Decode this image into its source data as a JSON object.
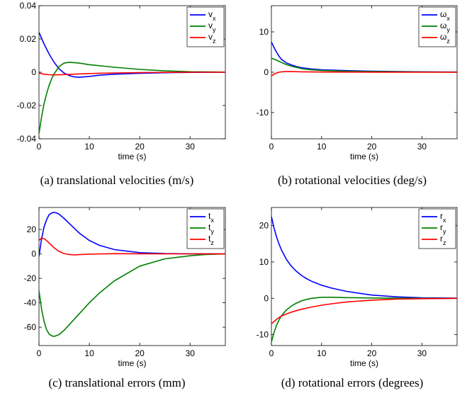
{
  "chart_data": [
    {
      "type": "line",
      "caption": "(a) translational velocities (m/s)",
      "xlabel": "time (s)",
      "xlim": [
        0,
        37
      ],
      "ylim": [
        -0.04,
        0.04
      ],
      "xticks": [
        "0",
        "10",
        "20",
        "30"
      ],
      "xtick_values": [
        0,
        10,
        20,
        30
      ],
      "yticks": [
        "-0.04",
        "-0.02",
        "0",
        "0.02",
        "0.04"
      ],
      "ytick_values": [
        -0.04,
        -0.02,
        0,
        0.02,
        0.04
      ],
      "legend": {
        "position": "top-right"
      },
      "series": [
        {
          "name": "v",
          "sub": "x",
          "color": "#0000ff",
          "x": [
            0,
            1,
            2,
            3,
            4,
            5,
            6,
            7,
            8,
            10,
            12,
            15,
            20,
            25,
            30,
            37
          ],
          "y": [
            0.024,
            0.017,
            0.011,
            0.006,
            0.002,
            -0.0005,
            -0.002,
            -0.0028,
            -0.003,
            -0.0025,
            -0.0018,
            -0.0012,
            -0.0006,
            -0.0003,
            -0.0001,
            0
          ]
        },
        {
          "name": "v",
          "sub": "y",
          "color": "#008000",
          "x": [
            0,
            0.5,
            1,
            1.5,
            2,
            2.5,
            3,
            4,
            5,
            6,
            8,
            10,
            15,
            20,
            25,
            30,
            37
          ],
          "y": [
            -0.037,
            -0.027,
            -0.019,
            -0.013,
            -0.008,
            -0.004,
            -0.001,
            0.0035,
            0.0055,
            0.006,
            0.0055,
            0.0045,
            0.003,
            0.0017,
            0.0008,
            0.0003,
            0.0001
          ]
        },
        {
          "name": "v",
          "sub": "z",
          "color": "#ff0000",
          "x": [
            0,
            1,
            2,
            3,
            5,
            8,
            12,
            20,
            30,
            37
          ],
          "y": [
            -0.0005,
            -0.0012,
            -0.0015,
            -0.0016,
            -0.0014,
            -0.001,
            -0.0006,
            -0.0002,
            0,
            0
          ]
        }
      ]
    },
    {
      "type": "line",
      "caption": "(b) rotational velocities (deg/s)",
      "xlabel": "time (s)",
      "xlim": [
        0,
        37
      ],
      "ylim": [
        -16.5,
        16.5
      ],
      "xticks": [
        "0",
        "10",
        "20",
        "30"
      ],
      "xtick_values": [
        0,
        10,
        20,
        30
      ],
      "yticks": [
        "-10",
        "0",
        "10"
      ],
      "ytick_values": [
        -10,
        0,
        10
      ],
      "legend": {
        "position": "top-right"
      },
      "series": [
        {
          "name": "ω",
          "sub": "x",
          "color": "#0000ff",
          "x": [
            0,
            0.5,
            1,
            1.5,
            2,
            3,
            4,
            5,
            6,
            8,
            10,
            15,
            20,
            30,
            37
          ],
          "y": [
            7.5,
            6.2,
            5.0,
            4.0,
            3.2,
            2.3,
            1.8,
            1.4,
            1.1,
            0.8,
            0.6,
            0.4,
            0.25,
            0.1,
            0.05
          ]
        },
        {
          "name": "ω",
          "sub": "y",
          "color": "#008000",
          "x": [
            0,
            1,
            2,
            3,
            4,
            5,
            6,
            8,
            10,
            15,
            20,
            30,
            37
          ],
          "y": [
            3.5,
            3.0,
            2.4,
            1.9,
            1.5,
            1.2,
            0.9,
            0.6,
            0.45,
            0.25,
            0.15,
            0.05,
            0.02
          ]
        },
        {
          "name": "ω",
          "sub": "z",
          "color": "#ff0000",
          "x": [
            0,
            0.5,
            1,
            1.5,
            2,
            3,
            4,
            6,
            10,
            20,
            37
          ],
          "y": [
            -0.9,
            -0.5,
            -0.2,
            0,
            0.1,
            0.15,
            0.15,
            0.1,
            0.05,
            0.02,
            0
          ]
        }
      ]
    },
    {
      "type": "line",
      "caption": "(c) translational errors (mm)",
      "xlabel": "time (s)",
      "xlim": [
        0,
        37
      ],
      "ylim": [
        -75,
        38
      ],
      "xticks": [
        "0",
        "10",
        "20",
        "30"
      ],
      "xtick_values": [
        0,
        10,
        20,
        30
      ],
      "yticks": [
        "-60",
        "-40",
        "-20",
        "0",
        "20"
      ],
      "ytick_values": [
        -60,
        -40,
        -20,
        0,
        20
      ],
      "legend": {
        "position": "top-right"
      },
      "series": [
        {
          "name": "t",
          "sub": "x",
          "color": "#0000ff",
          "x": [
            0,
            0.5,
            1,
            1.5,
            2,
            2.5,
            3,
            3.5,
            4,
            5,
            6,
            7,
            8,
            10,
            12,
            15,
            20,
            25,
            30,
            37
          ],
          "y": [
            -2,
            12,
            22,
            28,
            32,
            33.5,
            34,
            33.5,
            32.5,
            29,
            25,
            21,
            17,
            11,
            7,
            3.5,
            1,
            0.3,
            0.1,
            0
          ]
        },
        {
          "name": "t",
          "sub": "y",
          "color": "#008000",
          "x": [
            0,
            0.5,
            1,
            1.5,
            2,
            2.5,
            3,
            4,
            5,
            6,
            8,
            10,
            12,
            15,
            20,
            25,
            30,
            33,
            37
          ],
          "y": [
            -30,
            -45,
            -55,
            -62,
            -65.5,
            -67,
            -67.5,
            -66,
            -62.5,
            -58,
            -49,
            -40,
            -32,
            -22,
            -10,
            -4,
            -1.5,
            -0.5,
            0
          ]
        },
        {
          "name": "t",
          "sub": "z",
          "color": "#ff0000",
          "x": [
            0,
            0.5,
            1,
            1.5,
            2,
            3,
            4,
            5,
            6,
            7,
            8,
            10,
            15,
            20,
            37
          ],
          "y": [
            11,
            13,
            12.5,
            11,
            9,
            5,
            2,
            0.3,
            -0.5,
            -0.8,
            -0.6,
            -0.2,
            0.2,
            0.1,
            0
          ]
        }
      ]
    },
    {
      "type": "line",
      "caption": "(d) rotational errors (degrees)",
      "xlabel": "time (s)",
      "xlim": [
        0,
        37
      ],
      "ylim": [
        -13,
        25
      ],
      "xticks": [
        "0",
        "10",
        "20",
        "30"
      ],
      "xtick_values": [
        0,
        10,
        20,
        30
      ],
      "yticks": [
        "-10",
        "0",
        "10",
        "20"
      ],
      "ytick_values": [
        -10,
        0,
        10,
        20
      ],
      "legend": {
        "position": "top-right"
      },
      "series": [
        {
          "name": "r",
          "sub": "x",
          "color": "#0000ff",
          "x": [
            0,
            0.5,
            1,
            1.5,
            2,
            3,
            4,
            5,
            6,
            7,
            8,
            10,
            12,
            15,
            20,
            25,
            30,
            37
          ],
          "y": [
            22.5,
            19.5,
            17,
            15,
            13.3,
            10.7,
            8.8,
            7.4,
            6.3,
            5.4,
            4.7,
            3.6,
            2.8,
            1.9,
            0.9,
            0.4,
            0.15,
            0.05
          ]
        },
        {
          "name": "r",
          "sub": "y",
          "color": "#008000",
          "x": [
            0,
            0.5,
            1,
            1.5,
            2,
            3,
            4,
            5,
            6,
            7,
            8,
            10,
            12,
            15,
            20,
            30,
            37
          ],
          "y": [
            -12,
            -9.5,
            -7.5,
            -6,
            -4.8,
            -3.2,
            -2.1,
            -1.3,
            -0.7,
            -0.3,
            0,
            0.3,
            0.3,
            0.2,
            0.1,
            0,
            0
          ]
        },
        {
          "name": "r",
          "sub": "z",
          "color": "#ff0000",
          "x": [
            0,
            0.5,
            1,
            1.5,
            2,
            3,
            4,
            5,
            6,
            8,
            10,
            12,
            15,
            20,
            25,
            30,
            37
          ],
          "y": [
            -7,
            -6.4,
            -5.8,
            -5.3,
            -4.9,
            -4.3,
            -3.8,
            -3.4,
            -3.0,
            -2.4,
            -1.9,
            -1.5,
            -1.0,
            -0.5,
            -0.2,
            -0.1,
            0
          ]
        }
      ]
    }
  ]
}
